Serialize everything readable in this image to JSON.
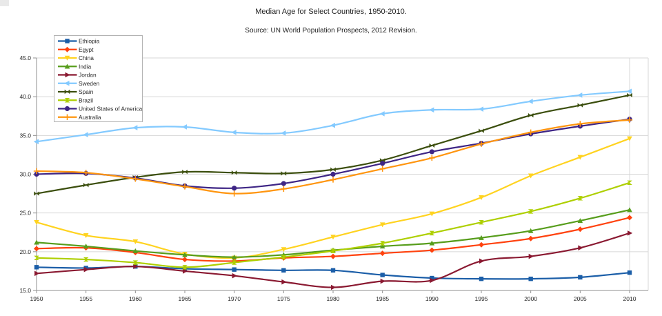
{
  "title": "Median Age for Select Countries, 1950-2010.",
  "subtitle": "Source: UN World Population Prospects, 2012 Revision.",
  "chart_data": {
    "type": "line",
    "title": "Median Age for Select Countries, 1950-2010.",
    "subtitle": "Source: UN World Population Prospects, 2012 Revision.",
    "xlabel": "",
    "ylabel": "",
    "x": [
      1950,
      1955,
      1960,
      1965,
      1970,
      1975,
      1980,
      1985,
      1990,
      1995,
      2000,
      2005,
      2010
    ],
    "x_tick_labels": [
      "1950",
      "1955",
      "1960",
      "1965",
      "1970",
      "1975",
      "1980",
      "1985",
      "1990",
      "1995",
      "2000",
      "2005",
      "2010"
    ],
    "y_tick_labels": [
      "15.0",
      "20.0",
      "25.0",
      "30.0",
      "35.0",
      "40.0",
      "45.0"
    ],
    "ylim": [
      15,
      45
    ],
    "ytick_step": 5,
    "grid": true,
    "line_smoothing": true,
    "legend_position": "top-left-inside",
    "series": [
      {
        "name": "Ethiopia",
        "color": "#1b5ea8",
        "marker": "square",
        "values": [
          18.0,
          17.9,
          18.1,
          17.8,
          17.7,
          17.6,
          17.6,
          17.0,
          16.6,
          16.5,
          16.5,
          16.7,
          17.3
        ]
      },
      {
        "name": "Egypt",
        "color": "#ff420e",
        "marker": "diamond",
        "values": [
          20.4,
          20.5,
          19.9,
          19.0,
          18.8,
          19.2,
          19.4,
          19.8,
          20.2,
          20.9,
          21.7,
          22.9,
          24.4
        ]
      },
      {
        "name": "China",
        "color": "#ffd320",
        "marker": "triangle-down",
        "values": [
          23.8,
          22.1,
          21.3,
          19.7,
          19.2,
          20.3,
          21.9,
          23.5,
          24.9,
          27.0,
          29.8,
          32.2,
          34.6
        ]
      },
      {
        "name": "India",
        "color": "#579d1c",
        "marker": "triangle-up",
        "values": [
          21.2,
          20.7,
          20.1,
          19.6,
          19.3,
          19.6,
          20.2,
          20.7,
          21.1,
          21.8,
          22.7,
          24.0,
          25.4
        ]
      },
      {
        "name": "Jordan",
        "color": "#8a1931",
        "marker": "arrow-right",
        "values": [
          17.2,
          17.7,
          18.1,
          17.5,
          16.9,
          16.1,
          15.4,
          16.2,
          16.3,
          18.8,
          19.4,
          20.5,
          22.4
        ]
      },
      {
        "name": "Sweden",
        "color": "#83caff",
        "marker": "arrow-left",
        "values": [
          34.2,
          35.1,
          36.0,
          36.1,
          35.4,
          35.3,
          36.3,
          37.8,
          38.3,
          38.4,
          39.4,
          40.2,
          40.7
        ]
      },
      {
        "name": "Spain",
        "color": "#3b4e0d",
        "marker": "bowtie",
        "values": [
          27.5,
          28.6,
          29.6,
          30.3,
          30.2,
          30.1,
          30.6,
          31.8,
          33.7,
          35.6,
          37.6,
          38.9,
          40.2
        ]
      },
      {
        "name": "Brazil",
        "color": "#aecf00",
        "marker": "hourglass",
        "values": [
          19.2,
          19.0,
          18.6,
          18.0,
          18.6,
          19.3,
          20.1,
          21.1,
          22.4,
          23.8,
          25.2,
          26.9,
          28.9
        ]
      },
      {
        "name": "United States of America",
        "color": "#3e2585",
        "marker": "circle",
        "values": [
          30.0,
          30.1,
          29.5,
          28.5,
          28.2,
          28.8,
          30.0,
          31.4,
          32.9,
          34.0,
          35.2,
          36.2,
          37.1
        ]
      },
      {
        "name": "Australia",
        "color": "#ff950e",
        "marker": "plus",
        "values": [
          30.4,
          30.2,
          29.4,
          28.4,
          27.5,
          28.1,
          29.3,
          30.7,
          32.1,
          33.9,
          35.4,
          36.5,
          37.0
        ]
      }
    ]
  }
}
